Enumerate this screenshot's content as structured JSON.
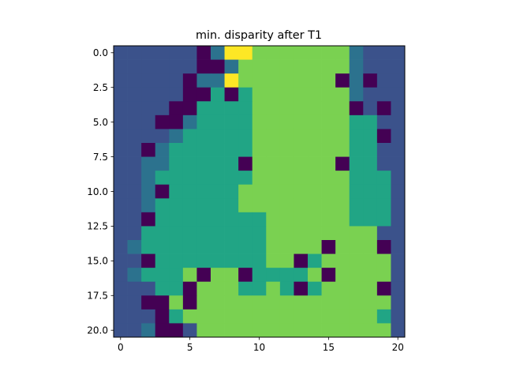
{
  "chart_data": {
    "type": "heatmap",
    "title": "min. disparity after T1",
    "xlabel": "",
    "ylabel": "",
    "xlim": [
      -0.5,
      20.5
    ],
    "ylim": [
      20.5,
      -0.5
    ],
    "x_ticks": [
      0,
      5,
      10,
      15,
      20
    ],
    "x_tick_labels": [
      "0",
      "5",
      "10",
      "15",
      "20"
    ],
    "y_ticks": [
      0.0,
      2.5,
      5.0,
      7.5,
      10.0,
      12.5,
      15.0,
      17.5,
      20.0
    ],
    "y_tick_labels": [
      "0.0",
      "2.5",
      "5.0",
      "7.5",
      "10.0",
      "12.5",
      "15.0",
      "17.5",
      "20.0"
    ],
    "colormap": "viridis",
    "value_colors": {
      "0": "#440154",
      "1": "#3b528b",
      "2": "#2c728e",
      "3": "#21a585",
      "4": "#7ad151",
      "5": "#fde725"
    },
    "grid": false,
    "values": [
      [
        1,
        1,
        1,
        1,
        1,
        1,
        0,
        2,
        5,
        5,
        4,
        4,
        4,
        4,
        4,
        4,
        4,
        2,
        1,
        1,
        1
      ],
      [
        1,
        1,
        1,
        1,
        1,
        1,
        0,
        0,
        2,
        4,
        4,
        4,
        4,
        4,
        4,
        4,
        4,
        2,
        1,
        1,
        1
      ],
      [
        1,
        1,
        1,
        1,
        1,
        0,
        2,
        2,
        5,
        4,
        4,
        4,
        4,
        4,
        4,
        4,
        0,
        2,
        0,
        1,
        1
      ],
      [
        1,
        1,
        1,
        1,
        1,
        0,
        0,
        3,
        0,
        3,
        4,
        4,
        4,
        4,
        4,
        4,
        4,
        2,
        1,
        1,
        1
      ],
      [
        1,
        1,
        1,
        1,
        0,
        0,
        3,
        3,
        3,
        3,
        4,
        4,
        4,
        4,
        4,
        4,
        4,
        0,
        1,
        0,
        1
      ],
      [
        1,
        1,
        1,
        0,
        0,
        2,
        3,
        3,
        3,
        3,
        4,
        4,
        4,
        4,
        4,
        4,
        4,
        3,
        3,
        1,
        1
      ],
      [
        1,
        1,
        1,
        1,
        2,
        3,
        3,
        3,
        3,
        3,
        4,
        4,
        4,
        4,
        4,
        4,
        4,
        3,
        3,
        0,
        1
      ],
      [
        1,
        1,
        0,
        2,
        3,
        3,
        3,
        3,
        3,
        3,
        4,
        4,
        4,
        4,
        4,
        4,
        4,
        3,
        3,
        1,
        1
      ],
      [
        1,
        1,
        2,
        2,
        3,
        3,
        3,
        3,
        3,
        0,
        4,
        4,
        4,
        4,
        4,
        4,
        0,
        3,
        3,
        1,
        1
      ],
      [
        1,
        1,
        2,
        3,
        3,
        3,
        3,
        3,
        3,
        3,
        4,
        4,
        4,
        4,
        4,
        4,
        4,
        3,
        3,
        3,
        1
      ],
      [
        1,
        1,
        2,
        0,
        3,
        3,
        3,
        3,
        3,
        4,
        4,
        4,
        4,
        4,
        4,
        4,
        4,
        3,
        3,
        3,
        1
      ],
      [
        1,
        1,
        2,
        3,
        3,
        3,
        3,
        3,
        3,
        4,
        4,
        4,
        4,
        4,
        4,
        4,
        4,
        3,
        3,
        3,
        1
      ],
      [
        1,
        1,
        0,
        3,
        3,
        3,
        3,
        3,
        3,
        3,
        3,
        4,
        4,
        4,
        4,
        4,
        4,
        3,
        3,
        3,
        1
      ],
      [
        1,
        1,
        3,
        3,
        3,
        3,
        3,
        3,
        3,
        3,
        3,
        4,
        4,
        4,
        4,
        4,
        4,
        4,
        4,
        1,
        1
      ],
      [
        1,
        2,
        3,
        3,
        3,
        3,
        3,
        3,
        3,
        3,
        3,
        4,
        4,
        4,
        4,
        0,
        4,
        4,
        4,
        0,
        1
      ],
      [
        1,
        1,
        0,
        3,
        3,
        3,
        3,
        3,
        3,
        3,
        3,
        4,
        4,
        0,
        3,
        4,
        4,
        4,
        4,
        4,
        1
      ],
      [
        1,
        2,
        3,
        3,
        3,
        4,
        0,
        4,
        4,
        0,
        3,
        3,
        3,
        3,
        4,
        0,
        4,
        4,
        4,
        4,
        1
      ],
      [
        1,
        1,
        1,
        3,
        3,
        0,
        4,
        4,
        4,
        3,
        3,
        4,
        3,
        0,
        3,
        4,
        4,
        4,
        4,
        0,
        1
      ],
      [
        1,
        1,
        0,
        0,
        4,
        0,
        4,
        4,
        4,
        4,
        4,
        4,
        4,
        4,
        4,
        4,
        4,
        4,
        4,
        4,
        1
      ],
      [
        1,
        1,
        1,
        0,
        3,
        4,
        4,
        4,
        4,
        4,
        4,
        4,
        4,
        4,
        4,
        4,
        4,
        4,
        4,
        3,
        1
      ],
      [
        1,
        1,
        2,
        0,
        0,
        1,
        4,
        4,
        4,
        4,
        4,
        4,
        4,
        4,
        4,
        4,
        4,
        4,
        4,
        4,
        1
      ]
    ]
  }
}
